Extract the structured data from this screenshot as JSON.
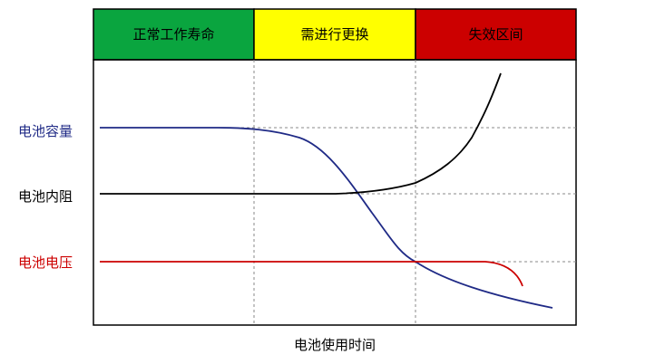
{
  "zones": [
    {
      "label": "正常工作寿命",
      "color": "#0aa53f",
      "text_color": "#000000"
    },
    {
      "label": "需进行更换",
      "color": "#ffff00",
      "text_color": "#000000"
    },
    {
      "label": "失效区间",
      "color": "#cc0000",
      "text_color": "#000000"
    }
  ],
  "curves": [
    {
      "label": "电池容量",
      "color": "#1f2a86"
    },
    {
      "label": "电池内阻",
      "color": "#000000"
    },
    {
      "label": "电池电压",
      "color": "#cc0000"
    }
  ],
  "xlabel": "电池使用时间"
}
